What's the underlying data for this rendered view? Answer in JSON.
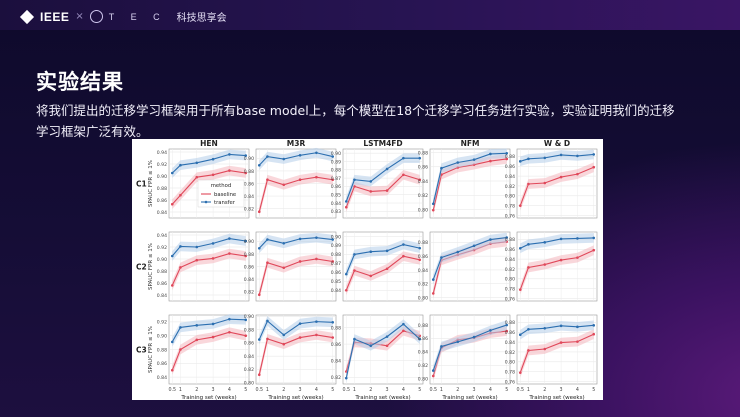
{
  "header": {
    "brand_ieee": "IEEE",
    "brand_separator": "×",
    "brand_tec": "T E C",
    "org_name": "科技思享会"
  },
  "slide": {
    "title": "实验结果",
    "description": "将我们提出的迁移学习框架用于所有base model上，每个模型在18个迁移学习任务进行实验，实验证明我们的迁移学习框架广泛有效。"
  },
  "figure": {
    "legend": {
      "title": "method",
      "baseline": "baseline",
      "transfer": "transfer"
    },
    "ylabel": "SPAUC",
    "ylabel_sub": "FPR ≤ 1%",
    "xlabel": "Training set (weeks)",
    "row_labels": [
      "C1",
      "C2",
      "C3"
    ],
    "colors": {
      "baseline": "#e0485a",
      "transfer": "#2c6fb0",
      "baseline_band": "#f4b6be",
      "transfer_band": "#b5cdea"
    }
  },
  "chart_data": {
    "type": "line",
    "x": [
      0.5,
      1,
      2,
      3,
      4,
      5
    ],
    "x_ticks": [
      "0.5",
      "1",
      "2",
      "3",
      "4",
      "5"
    ],
    "columns": [
      "HEN",
      "M3R",
      "LSTM4FD",
      "NFM",
      "W & D"
    ],
    "rows": [
      "C1",
      "C2",
      "C3"
    ],
    "panels": [
      {
        "row": "C1",
        "col": "HEN",
        "ylim": [
          0.83,
          0.945
        ],
        "yticks": [
          "0.84",
          "0.86",
          "0.88",
          "0.90",
          "0.92",
          "0.94"
        ],
        "series": [
          {
            "name": "baseline",
            "values": [
              0.853,
              0.868,
              0.898,
              0.902,
              0.909,
              0.905
            ]
          },
          {
            "name": "transfer",
            "values": [
              0.905,
              0.918,
              0.922,
              0.928,
              0.936,
              0.934
            ]
          }
        ]
      },
      {
        "row": "C1",
        "col": "M3R",
        "ylim": [
          0.805,
          0.915
        ],
        "yticks": [
          "0.82",
          "0.84",
          "0.86",
          "0.88",
          "0.90"
        ],
        "series": [
          {
            "name": "baseline",
            "values": [
              0.815,
              0.866,
              0.858,
              0.866,
              0.87,
              0.866
            ]
          },
          {
            "name": "transfer",
            "values": [
              0.889,
              0.903,
              0.899,
              0.905,
              0.909,
              0.903
            ]
          }
        ]
      },
      {
        "row": "C1",
        "col": "LSTM4FD",
        "ylim": [
          0.822,
          0.905
        ],
        "yticks": [
          "0.83",
          "0.84",
          "0.85",
          "0.86",
          "0.87",
          "0.88",
          "0.89",
          "0.90"
        ],
        "series": [
          {
            "name": "baseline",
            "values": [
              0.835,
              0.86,
              0.854,
              0.855,
              0.874,
              0.868
            ]
          },
          {
            "name": "transfer",
            "values": [
              0.842,
              0.868,
              0.866,
              0.881,
              0.894,
              0.894
            ]
          }
        ]
      },
      {
        "row": "C1",
        "col": "NFM",
        "ylim": [
          0.788,
          0.885
        ],
        "yticks": [
          "0.80",
          "0.82",
          "0.84",
          "0.86",
          "0.88"
        ],
        "series": [
          {
            "name": "baseline",
            "values": [
              0.799,
              0.849,
              0.859,
              0.863,
              0.868,
              0.871
            ]
          },
          {
            "name": "transfer",
            "values": [
              0.808,
              0.858,
              0.866,
              0.87,
              0.878,
              0.879
            ]
          }
        ]
      },
      {
        "row": "C1",
        "col": "W & D",
        "ylim": [
          0.755,
          0.895
        ],
        "yticks": [
          "0.76",
          "0.78",
          "0.80",
          "0.82",
          "0.84",
          "0.86",
          "0.88"
        ],
        "series": [
          {
            "name": "baseline",
            "values": [
              0.78,
              0.824,
              0.826,
              0.838,
              0.844,
              0.858
            ]
          },
          {
            "name": "transfer",
            "values": [
              0.87,
              0.875,
              0.877,
              0.883,
              0.881,
              0.884
            ]
          }
        ]
      },
      {
        "row": "C2",
        "col": "HEN",
        "ylim": [
          0.83,
          0.945
        ],
        "yticks": [
          "0.84",
          "0.86",
          "0.88",
          "0.90",
          "0.92",
          "0.94"
        ],
        "series": [
          {
            "name": "baseline",
            "values": [
              0.856,
              0.886,
              0.898,
              0.901,
              0.909,
              0.905
            ]
          },
          {
            "name": "transfer",
            "values": [
              0.905,
              0.921,
              0.92,
              0.926,
              0.934,
              0.93
            ]
          }
        ]
      },
      {
        "row": "C2",
        "col": "M3R",
        "ylim": [
          0.805,
          0.915
        ],
        "yticks": [
          "0.82",
          "0.84",
          "0.86",
          "0.88",
          "0.90"
        ],
        "series": [
          {
            "name": "baseline",
            "values": [
              0.815,
              0.866,
              0.858,
              0.868,
              0.872,
              0.868
            ]
          },
          {
            "name": "transfer",
            "values": [
              0.889,
              0.903,
              0.897,
              0.904,
              0.906,
              0.903
            ]
          }
        ]
      },
      {
        "row": "C2",
        "col": "LSTM4FD",
        "ylim": [
          0.828,
          0.905
        ],
        "yticks": [
          "0.84",
          "0.85",
          "0.86",
          "0.87",
          "0.88",
          "0.89",
          "0.90"
        ],
        "series": [
          {
            "name": "baseline",
            "values": [
              0.84,
              0.862,
              0.856,
              0.864,
              0.878,
              0.874
            ]
          },
          {
            "name": "transfer",
            "values": [
              0.858,
              0.88,
              0.883,
              0.884,
              0.891,
              0.887
            ]
          }
        ]
      },
      {
        "row": "C2",
        "col": "NFM",
        "ylim": [
          0.795,
          0.895
        ],
        "yticks": [
          "0.80",
          "0.82",
          "0.84",
          "0.86",
          "0.88"
        ],
        "series": [
          {
            "name": "baseline",
            "values": [
              0.806,
              0.854,
              0.862,
              0.869,
              0.878,
              0.881
            ]
          },
          {
            "name": "transfer",
            "values": [
              0.826,
              0.858,
              0.866,
              0.875,
              0.884,
              0.887
            ]
          }
        ]
      },
      {
        "row": "C2",
        "col": "W & D",
        "ylim": [
          0.755,
          0.895
        ],
        "yticks": [
          "0.76",
          "0.78",
          "0.80",
          "0.82",
          "0.84",
          "0.86",
          "0.88"
        ],
        "series": [
          {
            "name": "baseline",
            "values": [
              0.778,
              0.823,
              0.829,
              0.838,
              0.843,
              0.858
            ]
          },
          {
            "name": "transfer",
            "values": [
              0.862,
              0.87,
              0.874,
              0.881,
              0.882,
              0.883
            ]
          }
        ]
      },
      {
        "row": "C3",
        "col": "HEN",
        "ylim": [
          0.83,
          0.93
        ],
        "yticks": [
          "0.84",
          "0.86",
          "0.88",
          "0.90",
          "0.92"
        ],
        "series": [
          {
            "name": "baseline",
            "values": [
              0.85,
              0.88,
              0.894,
              0.898,
              0.905,
              0.9
            ]
          },
          {
            "name": "transfer",
            "values": [
              0.891,
              0.912,
              0.915,
              0.917,
              0.924,
              0.923
            ]
          }
        ]
      },
      {
        "row": "C3",
        "col": "M3R",
        "ylim": [
          0.798,
          0.902
        ],
        "yticks": [
          "0.80",
          "0.82",
          "0.84",
          "0.86",
          "0.88",
          "0.90"
        ],
        "series": [
          {
            "name": "baseline",
            "values": [
              0.812,
              0.866,
              0.858,
              0.868,
              0.872,
              0.868
            ]
          },
          {
            "name": "transfer",
            "values": [
              0.865,
              0.893,
              0.872,
              0.889,
              0.892,
              0.891
            ]
          }
        ]
      },
      {
        "row": "C3",
        "col": "LSTM4FD",
        "ylim": [
          0.812,
          0.895
        ],
        "yticks": [
          "0.82",
          "0.84",
          "0.86",
          "0.88"
        ],
        "series": [
          {
            "name": "baseline",
            "values": [
              0.827,
              0.862,
              0.861,
              0.858,
              0.876,
              0.87
            ]
          },
          {
            "name": "transfer",
            "values": [
              0.819,
              0.866,
              0.858,
              0.869,
              0.884,
              0.866
            ]
          }
        ]
      },
      {
        "row": "C3",
        "col": "NFM",
        "ylim": [
          0.792,
          0.895
        ],
        "yticks": [
          "0.80",
          "0.82",
          "0.84",
          "0.86",
          "0.88"
        ],
        "series": [
          {
            "name": "baseline",
            "values": [
              0.804,
              0.846,
              0.858,
              0.861,
              0.868,
              0.871
            ]
          },
          {
            "name": "transfer",
            "values": [
              0.812,
              0.848,
              0.855,
              0.862,
              0.872,
              0.88
            ]
          }
        ]
      },
      {
        "row": "C3",
        "col": "W & D",
        "ylim": [
          0.755,
          0.895
        ],
        "yticks": [
          "0.76",
          "0.78",
          "0.80",
          "0.82",
          "0.84",
          "0.86",
          "0.88"
        ],
        "series": [
          {
            "name": "baseline",
            "values": [
              0.778,
              0.823,
              0.826,
              0.839,
              0.841,
              0.856
            ]
          },
          {
            "name": "transfer",
            "values": [
              0.855,
              0.866,
              0.868,
              0.873,
              0.871,
              0.874
            ]
          }
        ]
      }
    ]
  }
}
